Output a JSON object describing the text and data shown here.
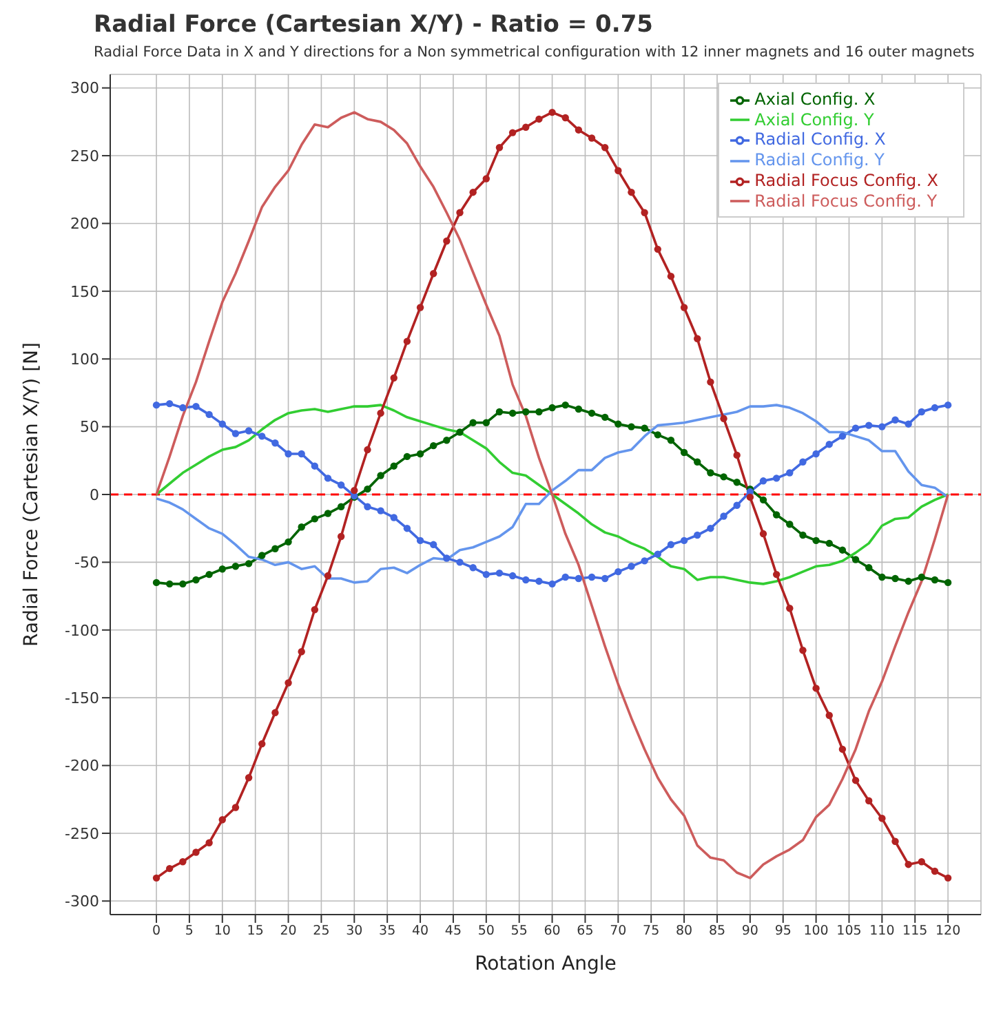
{
  "chart_data": {
    "type": "line",
    "title": "Radial Force (Cartesian X/Y) - Ratio = 0.75",
    "subtitle": "Radial Force Data in X and Y directions for a Non symmetrical configuration with 12 inner magnets and 16 outer magnets",
    "xlabel": "Rotation Angle",
    "ylabel": "Radial Force (Cartesian X/Y) [N]",
    "x": [
      0,
      2,
      4,
      6,
      8,
      10,
      12,
      14,
      16,
      18,
      20,
      22,
      24,
      26,
      28,
      30,
      32,
      34,
      36,
      38,
      40,
      42,
      44,
      46,
      48,
      50,
      52,
      54,
      56,
      58,
      60,
      62,
      64,
      66,
      68,
      70,
      72,
      74,
      76,
      78,
      80,
      82,
      84,
      86,
      88,
      90,
      92,
      94,
      96,
      98,
      100,
      102,
      104,
      106,
      108,
      110,
      112,
      114,
      116,
      118,
      120
    ],
    "series": [
      {
        "name": "Axial Config. X",
        "color": "#006400",
        "marker": "circle",
        "values": [
          -65,
          -66,
          -66,
          -63,
          -59,
          -55,
          -53,
          -51,
          -45,
          -40,
          -35,
          -24,
          -18,
          -14,
          -9,
          -2,
          4,
          14,
          21,
          28,
          30,
          36,
          40,
          46,
          53,
          53,
          61,
          60,
          61,
          61,
          64,
          66,
          63,
          60,
          57,
          52,
          50,
          49,
          44,
          40,
          31,
          24,
          16,
          13,
          9,
          4,
          -4,
          -15,
          -22,
          -30,
          -34,
          -36,
          -41,
          -48,
          -54,
          -61,
          -62,
          -64,
          -61,
          -63,
          -65
        ]
      },
      {
        "name": "Axial Config. Y",
        "color": "#32cd32",
        "marker": "none",
        "values": [
          0,
          8,
          16,
          22,
          28,
          33,
          35,
          40,
          48,
          55,
          60,
          62,
          63,
          61,
          63,
          65,
          65,
          66,
          62,
          57,
          54,
          51,
          48,
          46,
          40,
          34,
          24,
          16,
          14,
          7,
          0,
          -7,
          -14,
          -22,
          -28,
          -31,
          -36,
          -40,
          -46,
          -53,
          -55,
          -63,
          -61,
          -61,
          -63,
          -65,
          -66,
          -64,
          -61,
          -57,
          -53,
          -52,
          -49,
          -43,
          -36,
          -23,
          -18,
          -17,
          -9,
          -4,
          0
        ]
      },
      {
        "name": "Radial Config. X",
        "color": "#4169e1",
        "marker": "circle",
        "values": [
          66,
          67,
          64,
          65,
          59,
          52,
          45,
          47,
          43,
          38,
          30,
          30,
          21,
          12,
          7,
          -1,
          -9,
          -12,
          -17,
          -25,
          -34,
          -37,
          -47,
          -50,
          -54,
          -59,
          -58,
          -60,
          -63,
          -64,
          -66,
          -61,
          -62,
          -61,
          -62,
          -57,
          -53,
          -49,
          -44,
          -37,
          -34,
          -30,
          -25,
          -16,
          -8,
          2,
          10,
          12,
          16,
          24,
          30,
          37,
          43,
          49,
          51,
          50,
          55,
          52,
          61,
          64,
          66
        ]
      },
      {
        "name": "Radial Config. Y",
        "color": "#6495ed",
        "marker": "none",
        "values": [
          -3,
          -6,
          -11,
          -18,
          -25,
          -29,
          -37,
          -46,
          -48,
          -52,
          -50,
          -55,
          -53,
          -62,
          -62,
          -65,
          -64,
          -55,
          -54,
          -58,
          -52,
          -47,
          -48,
          -41,
          -39,
          -35,
          -31,
          -24,
          -7,
          -7,
          3,
          10,
          18,
          18,
          27,
          31,
          33,
          43,
          51,
          52,
          53,
          55,
          57,
          59,
          61,
          65,
          65,
          66,
          64,
          60,
          54,
          46,
          46,
          43,
          40,
          32,
          32,
          17,
          7,
          5,
          -2
        ]
      },
      {
        "name": "Radial Focus Config. X",
        "color": "#b22222",
        "marker": "circle",
        "values": [
          -283,
          -276,
          -271,
          -264,
          -257,
          -240,
          -231,
          -209,
          -184,
          -161,
          -139,
          -116,
          -85,
          -60,
          -31,
          3,
          33,
          60,
          86,
          113,
          138,
          163,
          187,
          208,
          223,
          233,
          256,
          267,
          271,
          277,
          282,
          278,
          269,
          263,
          256,
          239,
          223,
          208,
          181,
          161,
          138,
          115,
          83,
          56,
          29,
          -2,
          -29,
          -59,
          -84,
          -115,
          -143,
          -163,
          -188,
          -211,
          -226,
          -239,
          -256,
          -273,
          -271,
          -278,
          -283
        ]
      },
      {
        "name": "Radial Focus Config. Y",
        "color": "#cd5c5c",
        "marker": "none",
        "values": [
          0,
          28,
          58,
          83,
          113,
          142,
          163,
          187,
          212,
          227,
          239,
          258,
          273,
          271,
          278,
          282,
          277,
          275,
          269,
          259,
          242,
          227,
          208,
          188,
          164,
          140,
          117,
          81,
          58,
          27,
          0,
          -29,
          -52,
          -82,
          -112,
          -140,
          -165,
          -188,
          -209,
          -225,
          -237,
          -259,
          -268,
          -270,
          -279,
          -283,
          -273,
          -267,
          -262,
          -255,
          -238,
          -229,
          -210,
          -188,
          -160,
          -138,
          -112,
          -87,
          -64,
          -33,
          0
        ]
      }
    ],
    "xlim": [
      -7,
      125
    ],
    "xticks": [
      0,
      5,
      10,
      15,
      20,
      25,
      30,
      35,
      40,
      45,
      50,
      55,
      60,
      65,
      70,
      75,
      80,
      85,
      90,
      95,
      100,
      105,
      110,
      115,
      120
    ],
    "ylim": [
      -310,
      310
    ],
    "yticks": [
      -300,
      -250,
      -200,
      -150,
      -100,
      -50,
      0,
      50,
      100,
      150,
      200,
      250,
      300
    ],
    "ref_lines": [
      {
        "axis": "y",
        "value": 0,
        "color": "#ff0000",
        "line_style": "dashed"
      }
    ],
    "grid": true,
    "legend": "top right",
    "line_style": "solid"
  }
}
